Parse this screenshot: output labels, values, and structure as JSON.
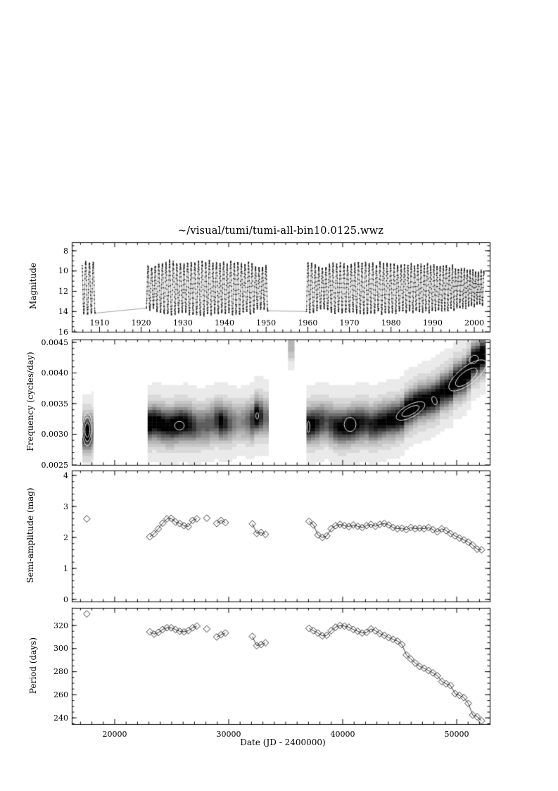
{
  "title": "~/visual/tumi/tumi-all-bin10.0125.wwz",
  "ink": "#000000",
  "contour_color": "#ffffff",
  "curve_line_color": "#777777",
  "point_color": "#111111",
  "chart_data": [
    {
      "type": "line",
      "name": "light-curve",
      "ylabel": "Magnitude",
      "ylim": [
        16,
        7.2
      ],
      "yticks": {
        "values": [
          8,
          10,
          12,
          14,
          16
        ],
        "labels": [
          "8",
          "10",
          "12",
          "14",
          "16"
        ],
        "minor_step": 0.5
      },
      "xticks_years": {
        "values": [
          1910,
          1920,
          1930,
          1940,
          1950,
          1960,
          1970,
          1980,
          1990,
          2000
        ],
        "labels": [
          "1910",
          "1920",
          "1930",
          "1940",
          "1950",
          "1960",
          "1970",
          "1980",
          "1990",
          "2000"
        ],
        "minor_step_years": 2
      },
      "segments": [
        [
          17150,
          18280
        ],
        [
          22780,
          33430
        ],
        [
          36820,
          52400
        ]
      ],
      "sample_step_days": 10,
      "mean_mag": 11.7,
      "cycle_amp_jitter": 0.3,
      "noise_mag": 0.2
    },
    {
      "type": "heatmap",
      "name": "wwz-map",
      "ylabel": "Frequency (cycles/day)",
      "ylim": [
        0.0025,
        0.0045
      ],
      "yticks": {
        "values": [
          0.0025,
          0.003,
          0.0035,
          0.004,
          0.0045
        ],
        "labels": [
          "0.0025",
          "0.0030",
          "0.0035",
          "0.0040",
          "0.0045"
        ],
        "minor_step": 0.0001
      },
      "segments": [
        [
          17170,
          18050
        ],
        [
          22890,
          33430
        ],
        [
          36820,
          52460
        ]
      ],
      "column_days": 390,
      "row_freq": 5e-05,
      "sigma_freq": 0.00014,
      "halo_weight": 0.3,
      "halo_sigma_mult": 2.3,
      "ridge_tilt_after": 48000,
      "ridge_tilt_max": 8e-05,
      "strength_points": [
        [
          17170,
          0.55
        ],
        [
          17400,
          0.95
        ],
        [
          17600,
          0.97
        ],
        [
          17850,
          0.9
        ],
        [
          18050,
          0.5
        ],
        [
          23080,
          0.88
        ],
        [
          23830,
          0.84
        ],
        [
          24580,
          0.78
        ],
        [
          25330,
          0.86
        ],
        [
          25850,
          0.9
        ],
        [
          26455,
          0.74
        ],
        [
          27205,
          0.52
        ],
        [
          27700,
          0.45
        ],
        [
          28080,
          0.5
        ],
        [
          28600,
          0.48
        ],
        [
          28950,
          0.6
        ],
        [
          29330,
          0.78
        ],
        [
          29710,
          0.65
        ],
        [
          30300,
          0.4
        ],
        [
          31000,
          0.32
        ],
        [
          31600,
          0.4
        ],
        [
          32080,
          0.6
        ],
        [
          32460,
          0.92
        ],
        [
          32840,
          0.62
        ],
        [
          33220,
          0.42
        ],
        [
          36900,
          0.82
        ],
        [
          37440,
          0.78
        ],
        [
          37830,
          0.66
        ],
        [
          38600,
          0.5
        ],
        [
          39400,
          0.7
        ],
        [
          40150,
          0.82
        ],
        [
          40700,
          0.88
        ],
        [
          41320,
          0.74
        ],
        [
          42090,
          0.62
        ],
        [
          42870,
          0.7
        ],
        [
          44030,
          0.76
        ],
        [
          44810,
          0.8
        ],
        [
          45590,
          0.9
        ],
        [
          46360,
          0.93
        ],
        [
          47140,
          0.82
        ],
        [
          47910,
          0.82
        ],
        [
          48300,
          0.8
        ],
        [
          48690,
          0.74
        ],
        [
          49470,
          0.85
        ],
        [
          50240,
          0.93
        ],
        [
          51020,
          0.96
        ],
        [
          51800,
          1.0
        ],
        [
          52450,
          1.0
        ]
      ],
      "stray_blob": {
        "t0": 35200,
        "t1": 35750,
        "f": 0.00444,
        "sigma": 0.00016,
        "strength": 0.22
      },
      "contours": [
        {
          "t": 17600,
          "f": 0.00308,
          "rt": 430,
          "rf": 0.00027,
          "rot": 0
        },
        {
          "t": 17600,
          "f": 0.00308,
          "rt": 330,
          "rf": 0.0002,
          "rot": 0
        },
        {
          "t": 17600,
          "f": 0.00307,
          "rt": 210,
          "rf": 0.00012,
          "rot": 0
        },
        {
          "t": 25680,
          "f": 0.00314,
          "rt": 420,
          "rf": 7e-05,
          "rot": 0
        },
        {
          "t": 32500,
          "f": 0.0033,
          "rt": 120,
          "rf": 5.5e-05,
          "rot": 0
        },
        {
          "t": 37000,
          "f": 0.00312,
          "rt": 120,
          "rf": 9e-05,
          "rot": 0
        },
        {
          "t": 40650,
          "f": 0.00316,
          "rt": 520,
          "rf": 0.000115,
          "rot": 0
        },
        {
          "t": 45950,
          "f": 0.00338,
          "rt": 1400,
          "rf": 0.0001,
          "rot": -28
        },
        {
          "t": 45950,
          "f": 0.00338,
          "rt": 850,
          "rf": 6e-05,
          "rot": -28
        },
        {
          "t": 48050,
          "f": 0.00355,
          "rt": 210,
          "rf": 7e-05,
          "rot": -20
        },
        {
          "t": 50950,
          "f": 0.00396,
          "rt": 2000,
          "rf": 0.00014,
          "rot": -38
        },
        {
          "t": 50850,
          "f": 0.00393,
          "rt": 1150,
          "rf": 9e-05,
          "rot": -38
        },
        {
          "t": 51500,
          "f": 0.00422,
          "rt": 430,
          "rf": 6e-05,
          "rot": -38
        }
      ]
    },
    {
      "type": "scatter",
      "name": "semi-amplitude",
      "ylabel": "Semi-amplitude (mag)",
      "ylim": [
        0,
        4.18
      ],
      "yticks": {
        "values": [
          0,
          1,
          2,
          3,
          4
        ],
        "labels": [
          "0",
          "1",
          "2",
          "3",
          "4"
        ],
        "minor_step": 0.2
      },
      "marker": "open-diamond",
      "connect_max_gap_days": 600
    },
    {
      "type": "scatter",
      "name": "period",
      "ylabel": "Period (days)",
      "xlabel": "Date (JD - 2400000)",
      "ylim": [
        234.6,
        335.2
      ],
      "yticks": {
        "values": [
          240,
          260,
          280,
          300,
          320
        ],
        "labels": [
          "240",
          "260",
          "280",
          "300",
          "320"
        ],
        "minor_step": 5
      },
      "xticks": {
        "values": [
          20000,
          30000,
          40000,
          50000
        ],
        "labels": [
          "20000",
          "30000",
          "40000",
          "50000"
        ],
        "minor_step": 1000
      },
      "marker": "open-diamond",
      "connect_max_gap_days": 600
    }
  ],
  "bins": {
    "t": [
      17550,
      23080,
      23455,
      23830,
      24205,
      24580,
      24955,
      25330,
      25705,
      26080,
      26455,
      26830,
      27205,
      28080,
      28950,
      29330,
      29710,
      32080,
      32460,
      32840,
      33220,
      37050,
      37438,
      37826,
      38214,
      38602,
      38990,
      39378,
      39766,
      40154,
      40542,
      40930,
      41318,
      41706,
      42094,
      42482,
      42870,
      43258,
      43646,
      44034,
      44422,
      44810,
      45198,
      45586,
      45974,
      46362,
      46750,
      47138,
      47526,
      47914,
      48302,
      48690,
      49078,
      49466,
      49854,
      50242,
      50630,
      51018,
      51406,
      51794,
      52182
    ],
    "semi_amplitude": [
      2.6,
      2.02,
      2.12,
      2.28,
      2.46,
      2.6,
      2.62,
      2.5,
      2.45,
      2.38,
      2.35,
      2.55,
      2.6,
      2.62,
      2.45,
      2.55,
      2.48,
      2.44,
      2.13,
      2.16,
      2.1,
      2.52,
      2.4,
      2.08,
      2.0,
      2.05,
      2.28,
      2.38,
      2.42,
      2.38,
      2.35,
      2.4,
      2.36,
      2.32,
      2.38,
      2.42,
      2.36,
      2.42,
      2.45,
      2.4,
      2.32,
      2.28,
      2.3,
      2.25,
      2.32,
      2.28,
      2.3,
      2.28,
      2.32,
      2.25,
      2.18,
      2.28,
      2.22,
      2.12,
      2.05,
      1.98,
      1.92,
      1.85,
      1.75,
      1.62,
      1.6
    ],
    "period": [
      330,
      314.5,
      312.5,
      314,
      316.5,
      318,
      318,
      316.5,
      315,
      314.5,
      315.5,
      318,
      319.5,
      317,
      310,
      312,
      313.5,
      310.5,
      302.5,
      303.5,
      305,
      317.5,
      315.5,
      313.5,
      311,
      311.5,
      315.5,
      318.5,
      320,
      319.5,
      318.5,
      316.5,
      315,
      313.5,
      314,
      317,
      315.5,
      313,
      311.5,
      309.5,
      308,
      306.5,
      303.5,
      294.5,
      291,
      287.5,
      284.5,
      283,
      281,
      279,
      276.5,
      271.5,
      269.5,
      268,
      261,
      259.5,
      257.5,
      252.5,
      242.5,
      241,
      237.5
    ]
  },
  "x_axis": {
    "jd_range": [
      16235,
      52900
    ],
    "year_to_jd_offset": 15020,
    "days_per_year": 365.25
  }
}
